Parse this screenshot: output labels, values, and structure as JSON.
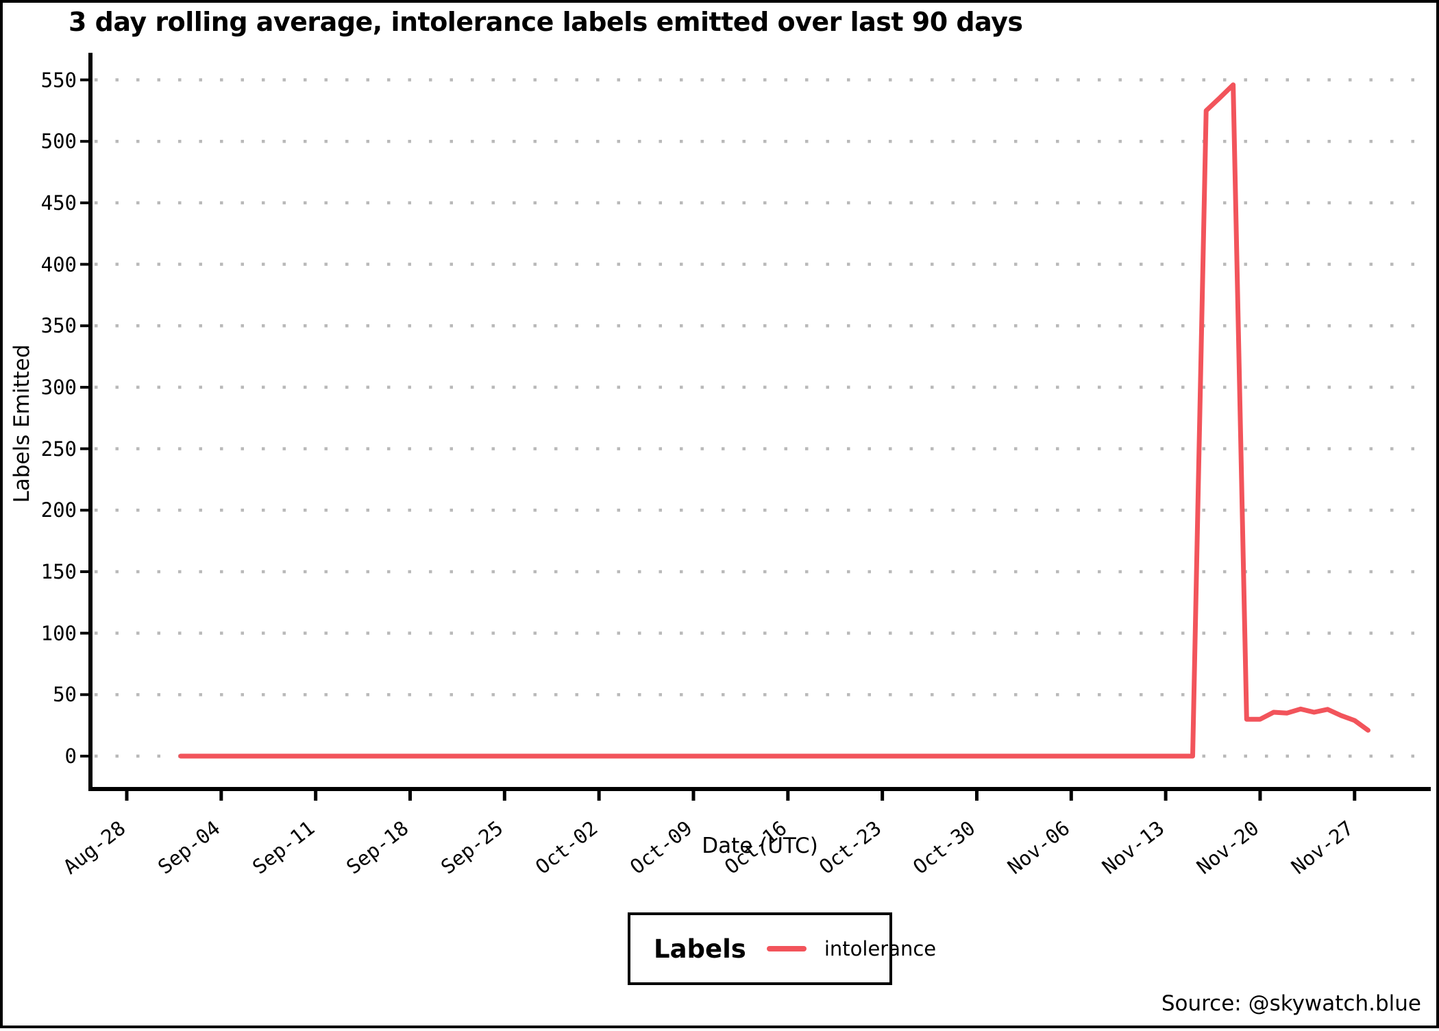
{
  "title": "3 day rolling average, intolerance labels emitted over last 90 days",
  "source": "Source: @skywatch.blue",
  "legend": {
    "title": "Labels",
    "series_label": "intolerance"
  },
  "axes": {
    "x_label": "Date (UTC)",
    "y_label": "Labels Emitted"
  },
  "colors": {
    "line": "#f2545b",
    "grid": "#b9b9b9",
    "axis": "#000000",
    "background": "#ffffff"
  },
  "chart_data": {
    "type": "line",
    "title": "3 day rolling average, intolerance labels emitted over last 90 days",
    "xlabel": "Date (UTC)",
    "ylabel": "Labels Emitted",
    "x_tick_labels": [
      "Aug-28",
      "Sep-04",
      "Sep-11",
      "Sep-18",
      "Sep-25",
      "Oct-02",
      "Oct-09",
      "Oct-16",
      "Oct-23",
      "Oct-30",
      "Nov-06",
      "Nov-13",
      "Nov-20",
      "Nov-27"
    ],
    "y_ticks": [
      0,
      50,
      100,
      150,
      200,
      250,
      300,
      350,
      400,
      450,
      500,
      550
    ],
    "ylim": [
      -27,
      571
    ],
    "grid": "horizontal-dotted",
    "legend_position": "bottom-center",
    "series": [
      {
        "name": "intolerance",
        "color": "#f2545b",
        "points": [
          [
            "Sep-01",
            0
          ],
          [
            "Sep-02",
            0
          ],
          [
            "Sep-03",
            0
          ],
          [
            "Sep-04",
            0
          ],
          [
            "Sep-05",
            0
          ],
          [
            "Sep-06",
            0
          ],
          [
            "Sep-07",
            0
          ],
          [
            "Sep-08",
            0
          ],
          [
            "Sep-09",
            0
          ],
          [
            "Sep-10",
            0
          ],
          [
            "Sep-11",
            0
          ],
          [
            "Sep-12",
            0
          ],
          [
            "Sep-13",
            0
          ],
          [
            "Sep-14",
            0
          ],
          [
            "Sep-15",
            0
          ],
          [
            "Sep-16",
            0
          ],
          [
            "Sep-17",
            0
          ],
          [
            "Sep-18",
            0
          ],
          [
            "Sep-19",
            0
          ],
          [
            "Sep-20",
            0
          ],
          [
            "Sep-21",
            0
          ],
          [
            "Sep-22",
            0
          ],
          [
            "Sep-23",
            0
          ],
          [
            "Sep-24",
            0
          ],
          [
            "Sep-25",
            0
          ],
          [
            "Sep-26",
            0
          ],
          [
            "Sep-27",
            0
          ],
          [
            "Sep-28",
            0
          ],
          [
            "Sep-29",
            0
          ],
          [
            "Sep-30",
            0
          ],
          [
            "Oct-01",
            0
          ],
          [
            "Oct-02",
            0
          ],
          [
            "Oct-03",
            0
          ],
          [
            "Oct-04",
            0
          ],
          [
            "Oct-05",
            0
          ],
          [
            "Oct-06",
            0
          ],
          [
            "Oct-07",
            0
          ],
          [
            "Oct-08",
            0
          ],
          [
            "Oct-09",
            0
          ],
          [
            "Oct-10",
            0
          ],
          [
            "Oct-11",
            0
          ],
          [
            "Oct-12",
            0
          ],
          [
            "Oct-13",
            0
          ],
          [
            "Oct-14",
            0
          ],
          [
            "Oct-15",
            0
          ],
          [
            "Oct-16",
            0
          ],
          [
            "Oct-17",
            0
          ],
          [
            "Oct-18",
            0
          ],
          [
            "Oct-19",
            0
          ],
          [
            "Oct-20",
            0
          ],
          [
            "Oct-21",
            0
          ],
          [
            "Oct-22",
            0
          ],
          [
            "Oct-23",
            0
          ],
          [
            "Oct-24",
            0
          ],
          [
            "Oct-25",
            0
          ],
          [
            "Oct-26",
            0
          ],
          [
            "Oct-27",
            0
          ],
          [
            "Oct-28",
            0
          ],
          [
            "Oct-29",
            0
          ],
          [
            "Oct-30",
            0
          ],
          [
            "Oct-31",
            0
          ],
          [
            "Nov-01",
            0
          ],
          [
            "Nov-02",
            0
          ],
          [
            "Nov-03",
            0
          ],
          [
            "Nov-04",
            0
          ],
          [
            "Nov-05",
            0
          ],
          [
            "Nov-06",
            0
          ],
          [
            "Nov-07",
            0
          ],
          [
            "Nov-08",
            0
          ],
          [
            "Nov-09",
            0
          ],
          [
            "Nov-10",
            0
          ],
          [
            "Nov-11",
            0
          ],
          [
            "Nov-12",
            0
          ],
          [
            "Nov-13",
            0
          ],
          [
            "Nov-14",
            0
          ],
          [
            "Nov-15",
            0
          ],
          [
            "Nov-16",
            525
          ],
          [
            "Nov-17",
            535.3
          ],
          [
            "Nov-18",
            546
          ],
          [
            "Nov-19",
            30
          ],
          [
            "Nov-20",
            30
          ],
          [
            "Nov-21",
            35.7
          ],
          [
            "Nov-22",
            35
          ],
          [
            "Nov-23",
            38.3
          ],
          [
            "Nov-24",
            35.7
          ],
          [
            "Nov-25",
            38
          ],
          [
            "Nov-26",
            33
          ],
          [
            "Nov-27",
            29
          ],
          [
            "Nov-28",
            21
          ]
        ]
      }
    ]
  }
}
